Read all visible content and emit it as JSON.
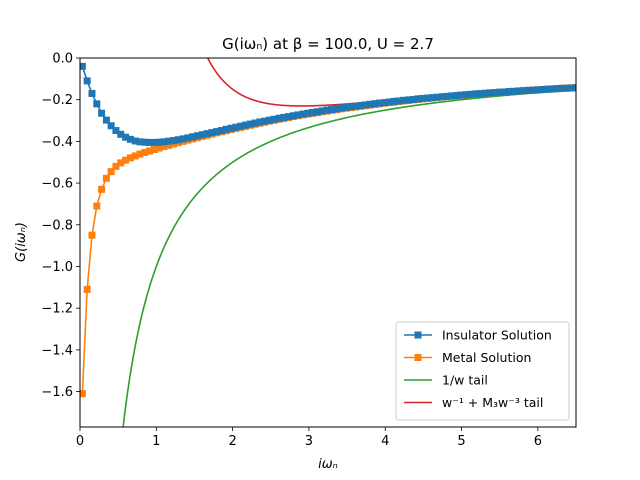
{
  "chart_data": {
    "type": "line",
    "title": "G(iωₙ) at β = 100.0, U = 2.7",
    "xlabel": "iωₙ",
    "ylabel": "G(iωₙ)",
    "xlim": [
      0,
      6.5
    ],
    "ylim": [
      -1.77,
      0.0
    ],
    "xticks": [
      0,
      1,
      2,
      3,
      4,
      5,
      6
    ],
    "yticks": [
      0.0,
      -0.2,
      -0.4,
      -0.6,
      -0.8,
      -1.0,
      -1.2,
      -1.4,
      -1.6
    ],
    "xtick_labels": [
      "0",
      "1",
      "2",
      "3",
      "4",
      "5",
      "6"
    ],
    "ytick_labels": [
      "0.0",
      "−0.2",
      "−0.4",
      "−0.6",
      "−0.8",
      "−1.0",
      "−1.2",
      "−1.4",
      "−1.6"
    ],
    "grid": false,
    "legend_position": "lower-right",
    "beta": 100.0,
    "U": 2.7,
    "M3": 2.8,
    "series": [
      {
        "name": "Insulator Solution",
        "color": "#1f77b4",
        "marker": "square",
        "x": [
          0.031,
          0.094,
          0.157,
          0.22,
          0.283,
          0.346,
          0.408,
          0.471,
          0.534,
          0.597,
          0.66,
          0.723,
          0.785,
          0.848,
          0.911,
          0.974,
          1.037,
          1.1,
          1.162,
          1.225,
          1.288,
          1.351,
          1.414,
          1.477,
          1.539,
          1.602,
          1.665,
          1.728,
          1.791,
          1.854,
          1.916,
          1.979,
          2.042,
          2.105,
          2.168,
          2.231,
          2.293,
          2.356,
          2.419,
          2.482,
          2.545,
          2.608,
          2.67,
          2.733,
          2.796,
          2.859,
          2.922,
          2.985,
          3.047,
          3.11,
          3.173,
          3.236,
          3.299,
          3.362,
          3.424,
          3.487,
          3.55,
          3.613,
          3.676,
          3.739,
          3.801,
          3.864,
          3.927,
          3.99,
          4.053,
          4.115,
          4.178,
          4.241,
          4.304,
          4.367,
          4.43,
          4.492,
          4.555,
          4.618,
          4.681,
          4.744,
          4.807,
          4.869,
          4.932,
          4.995,
          5.058,
          5.121,
          5.184,
          5.246,
          5.309,
          5.372,
          5.435,
          5.498,
          5.561,
          5.623,
          5.686,
          5.749,
          5.812,
          5.875,
          5.938,
          6.0,
          6.063,
          6.126,
          6.189,
          6.252,
          6.315,
          6.377,
          6.44,
          6.503
        ],
        "y": [
          -0.04,
          -0.11,
          -0.17,
          -0.22,
          -0.265,
          -0.298,
          -0.325,
          -0.348,
          -0.366,
          -0.38,
          -0.39,
          -0.398,
          -0.402,
          -0.404,
          -0.405,
          -0.405,
          -0.404,
          -0.402,
          -0.399,
          -0.396,
          -0.392,
          -0.388,
          -0.383,
          -0.378,
          -0.373,
          -0.368,
          -0.363,
          -0.358,
          -0.353,
          -0.348,
          -0.342,
          -0.337,
          -0.332,
          -0.327,
          -0.322,
          -0.317,
          -0.312,
          -0.307,
          -0.303,
          -0.298,
          -0.294,
          -0.289,
          -0.285,
          -0.281,
          -0.277,
          -0.273,
          -0.269,
          -0.265,
          -0.261,
          -0.258,
          -0.254,
          -0.25,
          -0.247,
          -0.244,
          -0.24,
          -0.237,
          -0.234,
          -0.231,
          -0.228,
          -0.225,
          -0.222,
          -0.219,
          -0.216,
          -0.214,
          -0.211,
          -0.208,
          -0.206,
          -0.203,
          -0.201,
          -0.199,
          -0.196,
          -0.194,
          -0.192,
          -0.19,
          -0.188,
          -0.186,
          -0.184,
          -0.182,
          -0.18,
          -0.178,
          -0.176,
          -0.174,
          -0.172,
          -0.171,
          -0.169,
          -0.167,
          -0.166,
          -0.164,
          -0.163,
          -0.161,
          -0.16,
          -0.158,
          -0.157,
          -0.155,
          -0.154,
          -0.153,
          -0.151,
          -0.15,
          -0.149,
          -0.147,
          -0.146,
          -0.145,
          -0.144,
          -0.143
        ]
      },
      {
        "name": "Metal Solution",
        "color": "#ff7f0e",
        "marker": "square",
        "x": [
          0.031,
          0.094,
          0.157,
          0.22,
          0.283,
          0.346,
          0.408,
          0.471,
          0.534,
          0.597,
          0.66,
          0.723,
          0.785,
          0.848,
          0.911,
          0.974,
          1.037,
          1.1,
          1.162,
          1.225,
          1.288,
          1.351,
          1.414,
          1.477,
          1.539,
          1.602,
          1.665,
          1.728,
          1.791,
          1.854,
          1.916,
          1.979,
          2.042,
          2.105,
          2.168,
          2.231,
          2.293,
          2.356,
          2.419,
          2.482,
          2.545,
          2.608,
          2.67,
          2.733,
          2.796,
          2.859,
          2.922,
          2.985,
          3.047,
          3.11,
          3.173,
          3.236,
          3.299,
          3.362,
          3.424,
          3.487,
          3.55,
          3.613,
          3.676,
          3.739,
          3.801,
          3.864,
          3.927,
          3.99,
          4.053,
          4.115,
          4.178,
          4.241,
          4.304,
          4.367,
          4.43,
          4.492,
          4.555,
          4.618,
          4.681,
          4.744,
          4.807,
          4.869,
          4.932,
          4.995,
          5.058,
          5.121,
          5.184,
          5.246,
          5.309,
          5.372,
          5.435,
          5.498,
          5.561,
          5.623,
          5.686,
          5.749,
          5.812,
          5.875,
          5.938,
          6.0,
          6.063,
          6.126,
          6.189,
          6.252,
          6.315,
          6.377,
          6.44,
          6.503
        ],
        "y": [
          -1.61,
          -1.11,
          -0.85,
          -0.71,
          -0.63,
          -0.577,
          -0.545,
          -0.52,
          -0.503,
          -0.49,
          -0.479,
          -0.47,
          -0.461,
          -0.453,
          -0.446,
          -0.439,
          -0.432,
          -0.425,
          -0.419,
          -0.412,
          -0.406,
          -0.4,
          -0.394,
          -0.388,
          -0.382,
          -0.376,
          -0.371,
          -0.365,
          -0.359,
          -0.354,
          -0.349,
          -0.343,
          -0.338,
          -0.333,
          -0.328,
          -0.323,
          -0.318,
          -0.313,
          -0.308,
          -0.303,
          -0.299,
          -0.294,
          -0.29,
          -0.286,
          -0.281,
          -0.277,
          -0.273,
          -0.269,
          -0.266,
          -0.262,
          -0.258,
          -0.255,
          -0.251,
          -0.248,
          -0.244,
          -0.241,
          -0.238,
          -0.235,
          -0.232,
          -0.229,
          -0.226,
          -0.223,
          -0.22,
          -0.217,
          -0.214,
          -0.212,
          -0.209,
          -0.206,
          -0.204,
          -0.201,
          -0.199,
          -0.196,
          -0.194,
          -0.192,
          -0.19,
          -0.187,
          -0.185,
          -0.183,
          -0.181,
          -0.179,
          -0.177,
          -0.175,
          -0.173,
          -0.171,
          -0.17,
          -0.168,
          -0.166,
          -0.164,
          -0.163,
          -0.161,
          -0.16,
          -0.158,
          -0.157,
          -0.155,
          -0.154,
          -0.152,
          -0.151,
          -0.149,
          -0.148,
          -0.147,
          -0.145,
          -0.144,
          -0.143,
          -0.142
        ]
      },
      {
        "name": "1/w tail",
        "color": "#2ca02c",
        "function": "-1/x",
        "x_range": [
          0.55,
          6.5
        ]
      },
      {
        "name": "w⁻¹ + M₃w⁻³ tail",
        "color": "#d62728",
        "function": "-1/x + M3/x^3",
        "x_range": [
          1.3,
          6.5
        ]
      }
    ]
  }
}
